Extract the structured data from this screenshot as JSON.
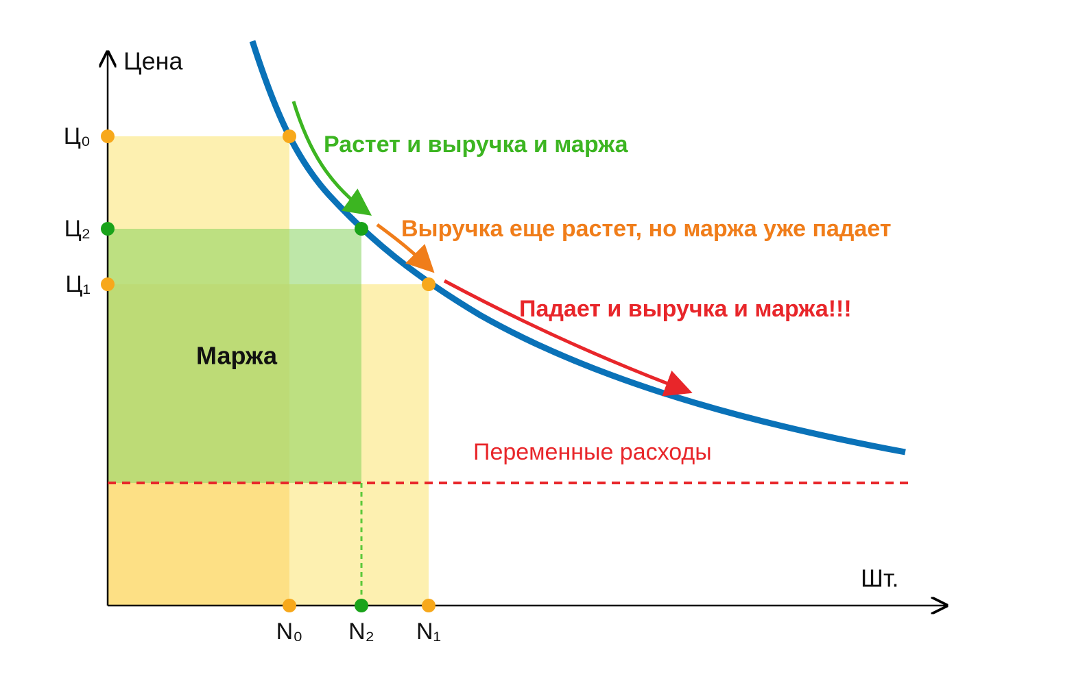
{
  "axes": {
    "y_label": "Цена",
    "x_label": "Шт."
  },
  "price_labels": [
    "Ц₀",
    "Ц₂",
    "Ц₁"
  ],
  "quantity_labels": [
    "N₀",
    "N₂",
    "N₁"
  ],
  "annotations": [
    "Растет и выручка и маржа",
    "Выручка еще растет, но маржа уже падает",
    "Падает и выручка и маржа!!!"
  ],
  "area_label": "Маржа",
  "cost_label": "Переменные расходы"
}
